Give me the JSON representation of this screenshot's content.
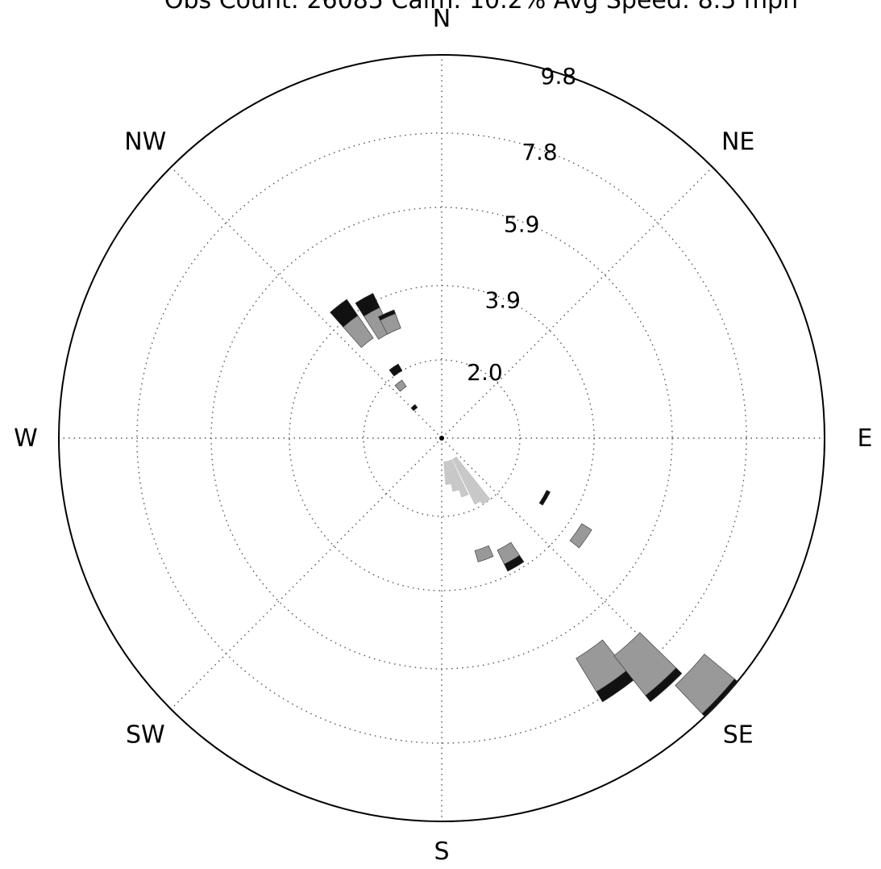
{
  "header": {
    "stats_text": "Obs Count: 26085 Calm: 10.2% Avg Speed: 8.5 mph"
  },
  "colors": {
    "dark_bin": "#111111",
    "light_bin": "#999999",
    "faint_bin": "#c8c8c8",
    "grid": "#555555",
    "outline": "#000000"
  },
  "chart_data": {
    "type": "windrose",
    "units": "percent frequency",
    "grid": true,
    "radial_max": 9.8,
    "radial_ticks": [
      2.0,
      3.9,
      5.9,
      7.8,
      9.8
    ],
    "radial_tick_labels": [
      "2.0",
      "3.9",
      "5.9",
      "7.8",
      "9.8"
    ],
    "direction_labels": [
      {
        "label": "N",
        "angle": 0
      },
      {
        "label": "NE",
        "angle": 45
      },
      {
        "label": "E",
        "angle": 90
      },
      {
        "label": "SE",
        "angle": 135
      },
      {
        "label": "S",
        "angle": 180
      },
      {
        "label": "SW",
        "angle": 225
      },
      {
        "label": "W",
        "angle": 270
      },
      {
        "label": "NW",
        "angle": 315
      }
    ],
    "bars": [
      {
        "direction": 150,
        "inner": 3.2,
        "outer": 3.6,
        "bin": "light"
      },
      {
        "direction": 150,
        "inner": 3.6,
        "outer": 3.8,
        "bin": "dark"
      },
      {
        "direction": 160,
        "inner": 3.0,
        "outer": 3.3,
        "bin": "light"
      },
      {
        "direction": 145,
        "inner": 6.6,
        "outer": 7.6,
        "bin": "light"
      },
      {
        "direction": 145,
        "inner": 7.6,
        "outer": 7.9,
        "bin": "dark"
      },
      {
        "direction": 138,
        "inner": 7.1,
        "outer": 8.4,
        "bin": "light"
      },
      {
        "direction": 138,
        "inner": 8.4,
        "outer": 8.6,
        "bin": "dark"
      },
      {
        "direction": 133,
        "inner": 8.7,
        "outer": 9.7,
        "bin": "light"
      },
      {
        "direction": 133,
        "inner": 9.7,
        "outer": 9.8,
        "bin": "dark"
      },
      {
        "direction": 125,
        "inner": 4.2,
        "outer": 4.5,
        "bin": "light"
      },
      {
        "direction": 120,
        "inner": 3.0,
        "outer": 3.1,
        "bin": "dark"
      },
      {
        "direction": 318,
        "inner": 1.0,
        "outer": 1.1,
        "bin": "dark"
      },
      {
        "direction": 322,
        "inner": 1.6,
        "outer": 1.8,
        "bin": "light"
      },
      {
        "direction": 326,
        "inner": 2.0,
        "outer": 2.2,
        "bin": "dark"
      },
      {
        "direction": 322,
        "inner": 3.1,
        "outer": 3.8,
        "bin": "light"
      },
      {
        "direction": 322,
        "inner": 3.8,
        "outer": 4.3,
        "bin": "dark"
      },
      {
        "direction": 331,
        "inner": 3.0,
        "outer": 3.7,
        "bin": "light"
      },
      {
        "direction": 331,
        "inner": 3.7,
        "outer": 4.1,
        "bin": "dark"
      },
      {
        "direction": 336,
        "inner": 3.0,
        "outer": 3.4,
        "bin": "light"
      },
      {
        "direction": 336,
        "inner": 3.4,
        "outer": 3.5,
        "bin": "dark"
      },
      {
        "direction": 145,
        "inner": 0.6,
        "outer": 2.0,
        "bin": "faint"
      },
      {
        "direction": 150,
        "inner": 0.6,
        "outer": 1.9,
        "bin": "faint"
      },
      {
        "direction": 158,
        "inner": 0.6,
        "outer": 1.6,
        "bin": "faint"
      },
      {
        "direction": 165,
        "inner": 0.6,
        "outer": 1.4,
        "bin": "faint"
      },
      {
        "direction": 172,
        "inner": 0.6,
        "outer": 1.2,
        "bin": "faint"
      }
    ]
  }
}
